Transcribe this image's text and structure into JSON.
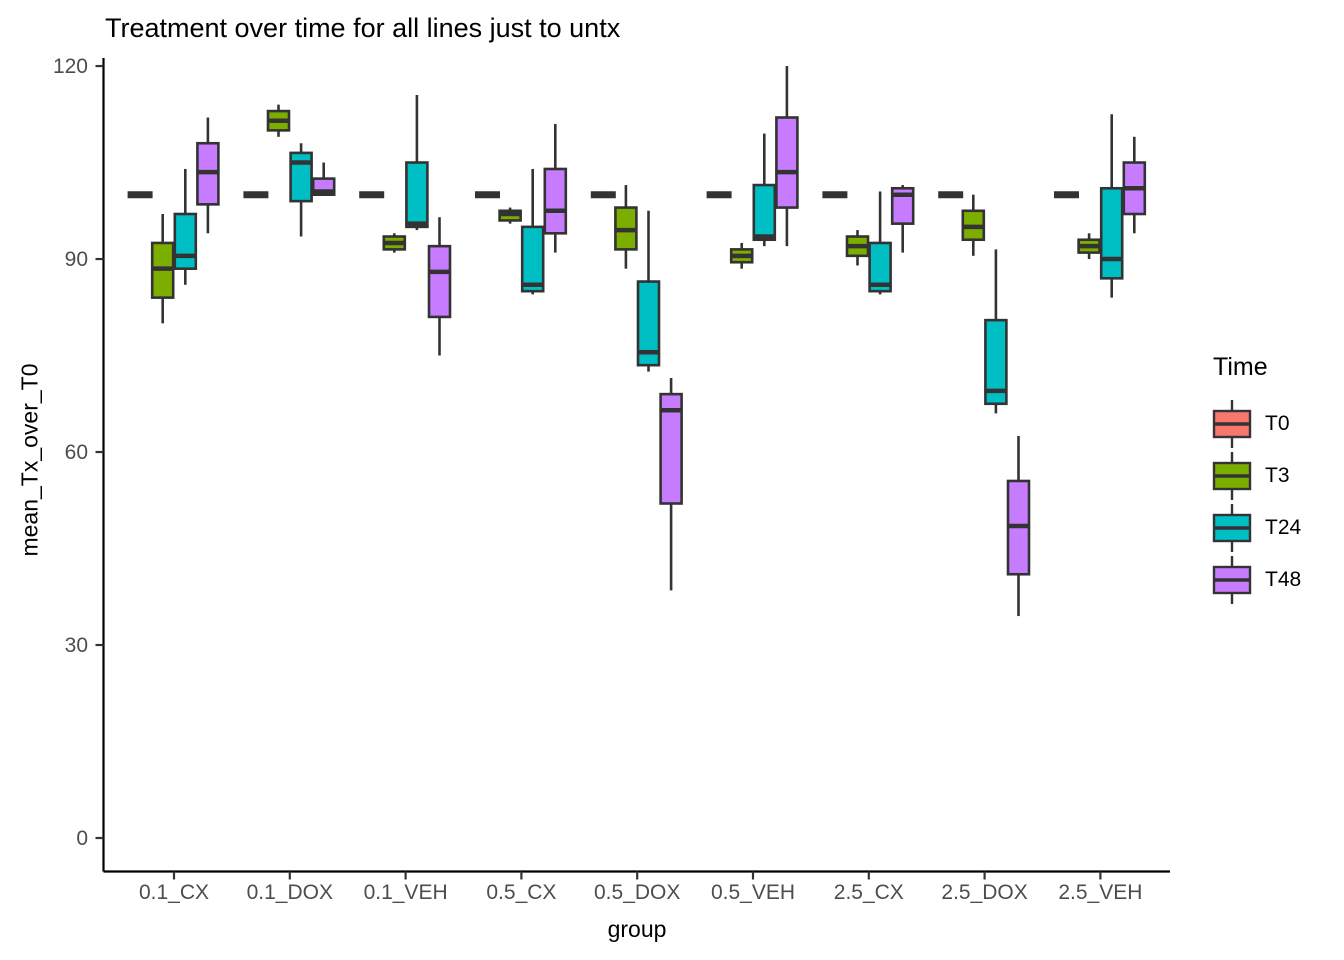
{
  "chart_data": {
    "type": "boxplot",
    "title": "Treatment over time for all lines just to untx",
    "xlabel": "group",
    "ylabel": "mean_Tx_over_T0",
    "ylim": [
      0,
      120
    ],
    "y_ticks": [
      0,
      30,
      60,
      90,
      120
    ],
    "categories": [
      "0.1_CX",
      "0.1_DOX",
      "0.1_VEH",
      "0.5_CX",
      "0.5_DOX",
      "0.5_VEH",
      "2.5_CX",
      "2.5_DOX",
      "2.5_VEH"
    ],
    "legend_title": "Time",
    "legend_position": "right",
    "grid": false,
    "note": "T0 boxes are degenerate (all values = 100), drawn as flat dashes at y=100 in each group. Box stats are [whisker_low, q1, median, q3, whisker_high].",
    "series": [
      {
        "name": "T0",
        "color": "#F8766D",
        "boxes": [
          [
            100,
            100,
            100,
            100,
            100
          ],
          [
            100,
            100,
            100,
            100,
            100
          ],
          [
            100,
            100,
            100,
            100,
            100
          ],
          [
            100,
            100,
            100,
            100,
            100
          ],
          [
            100,
            100,
            100,
            100,
            100
          ],
          [
            100,
            100,
            100,
            100,
            100
          ],
          [
            100,
            100,
            100,
            100,
            100
          ],
          [
            100,
            100,
            100,
            100,
            100
          ],
          [
            100,
            100,
            100,
            100,
            100
          ]
        ]
      },
      {
        "name": "T3",
        "color": "#7CAE00",
        "boxes": [
          [
            80,
            84,
            88.5,
            92.5,
            97
          ],
          [
            109,
            110,
            111.5,
            113,
            114
          ],
          [
            91,
            91.5,
            92.5,
            93.5,
            94
          ],
          [
            95.5,
            96,
            97,
            97.5,
            98
          ],
          [
            88.5,
            91.5,
            94.5,
            98,
            101.5
          ],
          [
            88.5,
            89.5,
            90.5,
            91.5,
            92.5
          ],
          [
            89,
            90.5,
            92,
            93.5,
            94.5
          ],
          [
            90.5,
            93,
            95,
            97.5,
            100
          ],
          [
            90,
            91,
            92,
            93,
            94
          ]
        ]
      },
      {
        "name": "T24",
        "color": "#00BFC4",
        "boxes": [
          [
            86,
            88.5,
            90.5,
            97,
            104
          ],
          [
            93.5,
            99,
            105,
            106.5,
            108
          ],
          [
            94.5,
            95,
            95.5,
            105,
            115.5
          ],
          [
            84.5,
            85,
            86,
            95,
            104
          ],
          [
            72.5,
            73.5,
            75.5,
            86.5,
            97.5
          ],
          [
            92,
            93,
            93.5,
            101.5,
            109.5
          ],
          [
            84.5,
            85,
            86,
            92.5,
            100.5
          ],
          [
            66,
            67.5,
            69.5,
            80.5,
            91.5
          ],
          [
            84,
            87,
            90,
            101,
            112.5
          ]
        ]
      },
      {
        "name": "T48",
        "color": "#C77CFF",
        "boxes": [
          [
            94,
            98.5,
            103.5,
            108,
            112
          ],
          [
            100,
            100,
            100.5,
            102.5,
            105
          ],
          [
            75,
            81,
            88,
            92,
            96.5
          ],
          [
            91,
            94,
            97.5,
            104,
            111
          ],
          [
            38.5,
            52,
            66.5,
            69,
            71.5
          ],
          [
            92,
            98,
            103.5,
            112,
            120
          ],
          [
            91,
            95.5,
            100,
            101,
            101.5
          ],
          [
            34.5,
            41,
            48.5,
            55.5,
            62.5
          ],
          [
            94,
            97,
            101,
            105,
            109
          ]
        ]
      }
    ],
    "style": {
      "box_border": "#333333",
      "axis_color": "#000000",
      "tick_label_color": "#4d4d4d"
    }
  }
}
